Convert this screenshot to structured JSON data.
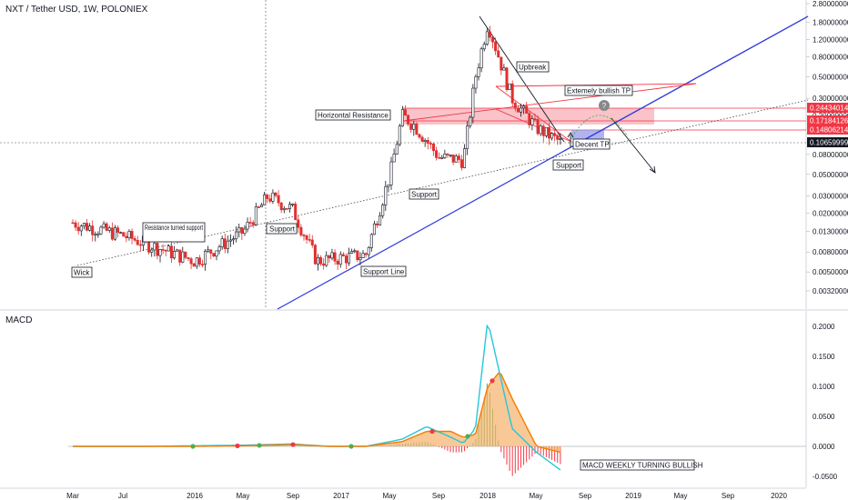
{
  "header": {
    "title": "NXT / Tether USD, 1W, POLONIEX",
    "macd_title": "MACD"
  },
  "chart_data": [
    {
      "type": "candlestick",
      "title": "NXT / Tether USD, 1W, POLONIEX",
      "y_scale": "log",
      "ylim": [
        0.0025,
        2.8
      ],
      "y_ticks": [
        "2.80000000",
        "1.80000000",
        "1.20000000",
        "0.80000000",
        "0.50000000",
        "0.30000000",
        "0.20000000",
        "0.08000000",
        "0.05000000",
        "0.03000000",
        "0.02000000",
        "0.01300000",
        "0.00800000",
        "0.00500000",
        "0.00320000"
      ],
      "x_ticks": [
        "Mar",
        "Jul",
        "2016",
        "May",
        "Sep",
        "2017",
        "May",
        "Sep",
        "2018",
        "May",
        "Sep",
        "2019",
        "May",
        "Sep",
        "2020"
      ],
      "price_tags": [
        {
          "value": "0.24434014",
          "color": "#f23645"
        },
        {
          "value": "0.17184126",
          "color": "#f23645"
        },
        {
          "value": "0.14806214",
          "color": "#f23645"
        },
        {
          "value": "0.10659999",
          "color": "#131722"
        }
      ],
      "annotations": [
        "Wick",
        "Resistance turned support",
        "Support",
        "Support Line",
        "Support",
        "Horizontal Resistance",
        "Upbreak",
        "Extemely bullish TP",
        "Decent TP",
        "Support"
      ],
      "series": [
        {
          "t": "2015-03",
          "close": 0.016
        },
        {
          "t": "2015-07",
          "close": 0.012
        },
        {
          "t": "2016-01",
          "close": 0.0065
        },
        {
          "t": "2016-05",
          "close": 0.013
        },
        {
          "t": "2016-07",
          "close": 0.03
        },
        {
          "t": "2016-09",
          "close": 0.022
        },
        {
          "t": "2016-11",
          "close": 0.0065
        },
        {
          "t": "2017-03",
          "close": 0.0075
        },
        {
          "t": "2017-05",
          "close": 0.05
        },
        {
          "t": "2017-06",
          "close": 0.2
        },
        {
          "t": "2017-07",
          "close": 0.16
        },
        {
          "t": "2017-09",
          "close": 0.075
        },
        {
          "t": "2017-11",
          "close": 0.07
        },
        {
          "t": "2017-12",
          "close": 0.5
        },
        {
          "t": "2018-01",
          "close": 1.8
        },
        {
          "t": "2018-03",
          "close": 0.3
        },
        {
          "t": "2018-05",
          "close": 0.15
        },
        {
          "t": "2018-07",
          "close": 0.106
        }
      ]
    },
    {
      "type": "line",
      "title": "MACD",
      "ylim": [
        -0.06,
        0.22
      ],
      "y_ticks": [
        "0.2000",
        "0.1500",
        "0.1000",
        "0.0500",
        "0.0000",
        "-0.0500"
      ],
      "annotation": "MACD WEEKLY TURNING BULLISH",
      "series": [
        {
          "name": "",
          "t": [
            "2015-03",
            "2015-09",
            "2016-01",
            "2016-05",
            "2016-09",
            "2016-12",
            "2017-03",
            "2017-06",
            "2017-08",
            "2017-10",
            "2017-11",
            "2017-12",
            "2018-01",
            "2018-02",
            "2018-03",
            "2018-05",
            "2018-07"
          ],
          "values": [
            0.0,
            0.0,
            0.001,
            0.002,
            0.004,
            0.0,
            0.0,
            0.012,
            0.033,
            0.015,
            0.005,
            0.03,
            0.21,
            0.12,
            0.03,
            -0.01,
            -0.04
          ]
        },
        {
          "name": "",
          "t": [
            "2015-03",
            "2015-09",
            "2016-01",
            "2016-05",
            "2016-09",
            "2016-12",
            "2017-03",
            "2017-06",
            "2017-08",
            "2017-10",
            "2017-11",
            "2017-12",
            "2018-01",
            "2018-02",
            "2018-03",
            "2018-05",
            "2018-07"
          ],
          "values": [
            0.0,
            0.0,
            0.0,
            0.001,
            0.003,
            0.0,
            0.0,
            0.008,
            0.025,
            0.025,
            0.015,
            0.02,
            0.1,
            0.125,
            0.08,
            0.0,
            -0.01
          ]
        }
      ]
    }
  ]
}
